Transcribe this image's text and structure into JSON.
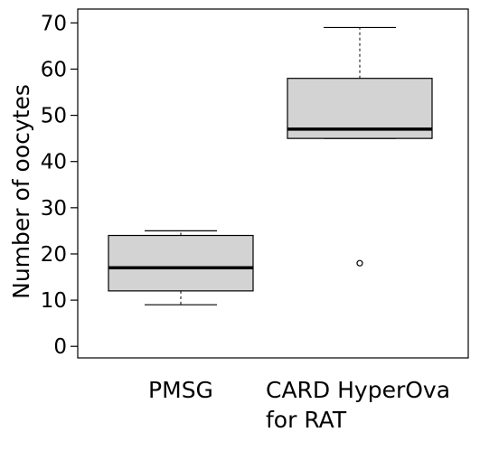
{
  "chart_data": {
    "type": "box",
    "title": "",
    "xlabel": "",
    "ylabel": "Number of oocytes",
    "ylim": [
      -2.5,
      73
    ],
    "yticks": [
      0,
      10,
      20,
      30,
      40,
      50,
      60,
      70
    ],
    "grid": false,
    "legend": "none",
    "box_fill": "#d3d3d3",
    "line_color": "#000000",
    "categories": [
      {
        "label_lines": [
          "PMSG"
        ]
      },
      {
        "label_lines": [
          "CARD HyperOva",
          "for RAT"
        ]
      }
    ],
    "boxes": [
      {
        "whisker_low": 9,
        "q1": 12,
        "median": 17,
        "q3": 24,
        "whisker_high": 25,
        "outliers": []
      },
      {
        "whisker_low": 45,
        "q1": 45,
        "median": 47,
        "q3": 58,
        "whisker_high": 69,
        "outliers": [
          18
        ]
      }
    ]
  }
}
